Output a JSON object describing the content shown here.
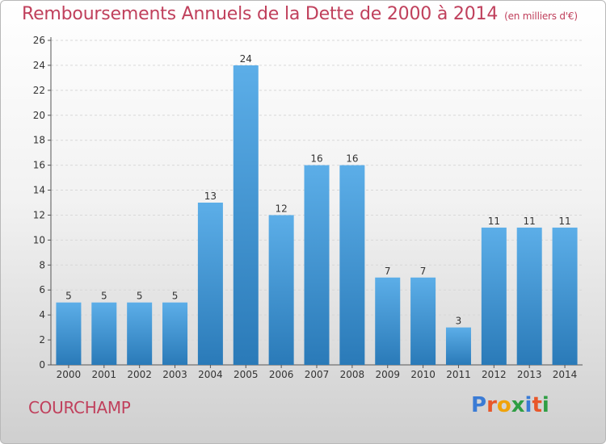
{
  "title": "Remboursements Annuels de la Dette de 2000 à 2014",
  "unit": "(en milliers d'€)",
  "location": "COURCHAMP",
  "logo": {
    "text": "Proxiti",
    "letters": [
      {
        "ch": "P",
        "color": "#3a7bd5"
      },
      {
        "ch": "r",
        "color": "#e8572a"
      },
      {
        "ch": "o",
        "color": "#f0a30a"
      },
      {
        "ch": "x",
        "color": "#2f9e44"
      },
      {
        "ch": "i",
        "color": "#3a7bd5"
      },
      {
        "ch": "t",
        "color": "#e8572a"
      },
      {
        "ch": "i",
        "color": "#2f9e44"
      }
    ]
  },
  "colors": {
    "bar_light": "#5caee8",
    "bar_dark": "#2a7ab8",
    "title": "#c0405c"
  },
  "chart_data": {
    "type": "bar",
    "categories": [
      "2000",
      "2001",
      "2002",
      "2003",
      "2004",
      "2005",
      "2006",
      "2007",
      "2008",
      "2009",
      "2010",
      "2011",
      "2012",
      "2013",
      "2014"
    ],
    "values": [
      5,
      5,
      5,
      5,
      13,
      24,
      12,
      16,
      16,
      7,
      7,
      3,
      11,
      11,
      11
    ],
    "ylim": [
      0,
      26
    ],
    "yticks": [
      0,
      2,
      4,
      6,
      8,
      10,
      12,
      14,
      16,
      18,
      20,
      22,
      24,
      26
    ],
    "grid": true
  }
}
